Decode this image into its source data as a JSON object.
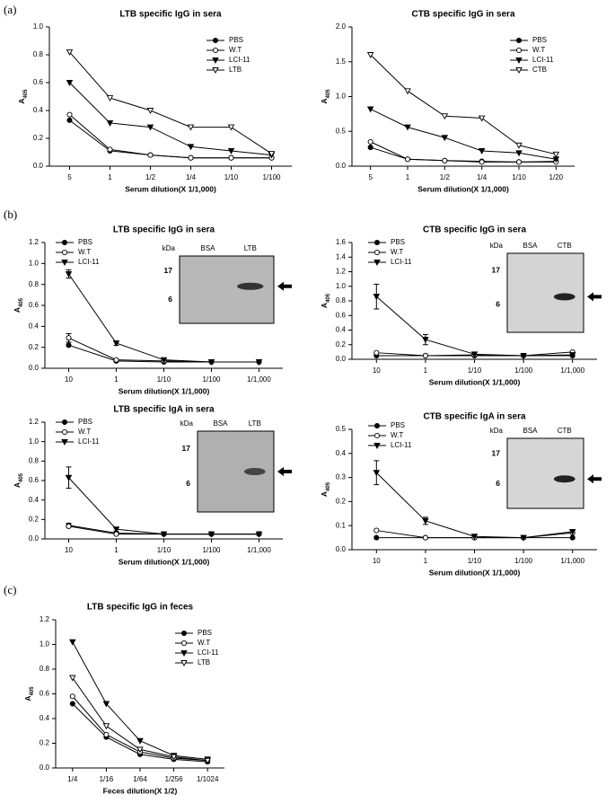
{
  "chart_data": [
    {
      "type": "line",
      "panel_label": "(a)",
      "title": "LTB specific IgG in sera",
      "xlabel": "Serum dilution(X 1/1,000)",
      "ylabel": "A",
      "ylabel_sub": "405",
      "categories": [
        "5",
        "1",
        "1/2",
        "1/4",
        "1/10",
        "1/100"
      ],
      "ylim": [
        0,
        1.0
      ],
      "yticks": [
        {
          "value": 0,
          "label": "0.0"
        },
        {
          "value": 0.2,
          "label": "0.2"
        },
        {
          "value": 0.4,
          "label": "0.4"
        },
        {
          "value": 0.6,
          "label": "0.6"
        },
        {
          "value": 0.8,
          "label": "0.8"
        },
        {
          "value": 1.0,
          "label": "1.0"
        }
      ],
      "series": [
        {
          "name": "PBS",
          "color": "#000000",
          "marker": "circle-filled",
          "values": [
            0.33,
            0.11,
            0.08,
            0.06,
            0.06,
            0.06
          ]
        },
        {
          "name": "W.T",
          "color": "#000000",
          "marker": "circle-open",
          "values": [
            0.37,
            0.12,
            0.08,
            0.06,
            0.06,
            0.06
          ]
        },
        {
          "name": "LCI-11",
          "color": "#000000",
          "marker": "triangle-filled",
          "values": [
            0.6,
            0.31,
            0.28,
            0.14,
            0.11,
            0.08
          ]
        },
        {
          "name": "LTB",
          "color": "#000000",
          "marker": "triangle-open",
          "values": [
            0.82,
            0.49,
            0.4,
            0.28,
            0.28,
            0.09
          ]
        }
      ]
    },
    {
      "type": "line",
      "title": "CTB specific IgG in sera",
      "xlabel": "Serum dilution(X 1/1,000)",
      "ylabel": "A",
      "ylabel_sub": "405",
      "categories": [
        "5",
        "1",
        "1/2",
        "1/4",
        "1/10",
        "1/20"
      ],
      "ylim": [
        0,
        2.0
      ],
      "yticks": [
        {
          "value": 0,
          "label": "0.0"
        },
        {
          "value": 0.5,
          "label": "0.5"
        },
        {
          "value": 1.0,
          "label": "1.0"
        },
        {
          "value": 1.5,
          "label": "1.5"
        },
        {
          "value": 2.0,
          "label": "2.0"
        }
      ],
      "series": [
        {
          "name": "PBS",
          "color": "#000000",
          "marker": "circle-filled",
          "values": [
            0.27,
            0.1,
            0.08,
            0.07,
            0.06,
            0.07
          ]
        },
        {
          "name": "W.T",
          "color": "#000000",
          "marker": "circle-open",
          "values": [
            0.35,
            0.1,
            0.08,
            0.06,
            0.06,
            0.06
          ]
        },
        {
          "name": "LCI-11",
          "color": "#000000",
          "marker": "triangle-filled",
          "values": [
            0.82,
            0.56,
            0.41,
            0.22,
            0.19,
            0.1
          ]
        },
        {
          "name": "CTB",
          "color": "#000000",
          "marker": "triangle-open",
          "values": [
            1.6,
            1.08,
            0.72,
            0.69,
            0.3,
            0.17
          ]
        }
      ]
    },
    {
      "type": "line",
      "panel_label": "(b)",
      "title": "LTB specific IgG in sera",
      "xlabel": "Serum dilution(X 1/1,000)",
      "ylabel": "A",
      "ylabel_sub": "405",
      "categories": [
        "10",
        "1",
        "1/10",
        "1/100",
        "1/1,000"
      ],
      "ylim": [
        0,
        1.2
      ],
      "yticks": [
        {
          "value": 0,
          "label": "0.0"
        },
        {
          "value": 0.2,
          "label": "0.2"
        },
        {
          "value": 0.4,
          "label": "0.4"
        },
        {
          "value": 0.6,
          "label": "0.6"
        },
        {
          "value": 0.8,
          "label": "0.8"
        },
        {
          "value": 1.0,
          "label": "1.0"
        },
        {
          "value": 1.2,
          "label": "1.2"
        }
      ],
      "series": [
        {
          "name": "PBS",
          "color": "#000000",
          "marker": "circle-filled",
          "values": [
            0.22,
            0.07,
            0.06,
            0.06,
            0.06
          ]
        },
        {
          "name": "W.T",
          "color": "#000000",
          "marker": "circle-open",
          "values": [
            0.29,
            0.08,
            0.07,
            0.06,
            0.06
          ],
          "errors": [
            0.04,
            null,
            null,
            null,
            null
          ]
        },
        {
          "name": "LCI-11",
          "color": "#000000",
          "marker": "triangle-filled",
          "values": [
            0.9,
            0.24,
            0.08,
            0.06,
            0.06
          ],
          "errors": [
            0.04,
            0.02,
            null,
            null,
            null
          ]
        }
      ],
      "inset": {
        "unit": "kDa",
        "lanes": [
          "BSA",
          "LTB"
        ],
        "markers": [
          "17",
          "6"
        ]
      }
    },
    {
      "type": "line",
      "title": "CTB specific IgG in sera",
      "xlabel": "Serum dilution(X 1/1,000)",
      "ylabel": "A",
      "ylabel_sub": "405",
      "categories": [
        "10",
        "1",
        "1/10",
        "1/100",
        "1/1,000"
      ],
      "ylim": [
        0,
        1.6
      ],
      "yticks": [
        {
          "value": 0,
          "label": "0.0"
        },
        {
          "value": 0.2,
          "label": "0.2"
        },
        {
          "value": 0.4,
          "label": "0.4"
        },
        {
          "value": 0.6,
          "label": "0.6"
        },
        {
          "value": 0.8,
          "label": "0.8"
        },
        {
          "value": 1.0,
          "label": "1.0"
        },
        {
          "value": 1.2,
          "label": "1.2"
        },
        {
          "value": 1.4,
          "label": "1.4"
        },
        {
          "value": 1.6,
          "label": "1.6"
        }
      ],
      "series": [
        {
          "name": "PBS",
          "color": "#000000",
          "marker": "circle-filled",
          "values": [
            0.05,
            0.05,
            0.05,
            0.05,
            0.05
          ]
        },
        {
          "name": "W.T",
          "color": "#000000",
          "marker": "circle-open",
          "values": [
            0.09,
            0.05,
            0.06,
            0.05,
            0.1
          ]
        },
        {
          "name": "LCI-11",
          "color": "#000000",
          "marker": "triangle-filled",
          "values": [
            0.86,
            0.27,
            0.07,
            0.05,
            0.06
          ],
          "errors": [
            0.17,
            0.07,
            null,
            null,
            null
          ]
        }
      ],
      "inset": {
        "unit": "kDa",
        "lanes": [
          "BSA",
          "CTB"
        ],
        "markers": [
          "17",
          "6"
        ]
      }
    },
    {
      "type": "line",
      "title": "LTB specific IgA in sera",
      "xlabel": "Serum dilution(X 1/1,000)",
      "ylabel": "A",
      "ylabel_sub": "405",
      "categories": [
        "10",
        "1",
        "1/10",
        "1/100",
        "1/1,000"
      ],
      "ylim": [
        0,
        1.2
      ],
      "yticks": [
        {
          "value": 0,
          "label": "0.0"
        },
        {
          "value": 0.2,
          "label": "0.2"
        },
        {
          "value": 0.4,
          "label": "0.4"
        },
        {
          "value": 0.6,
          "label": "0.6"
        },
        {
          "value": 0.8,
          "label": "0.8"
        },
        {
          "value": 1.0,
          "label": "1.0"
        },
        {
          "value": 1.2,
          "label": "1.2"
        }
      ],
      "series": [
        {
          "name": "PBS",
          "color": "#000000",
          "marker": "circle-filled",
          "values": [
            0.14,
            0.06,
            0.05,
            0.05,
            0.05
          ],
          "errors": [
            0.02,
            null,
            null,
            null,
            null
          ]
        },
        {
          "name": "W.T",
          "color": "#000000",
          "marker": "circle-open",
          "values": [
            0.13,
            0.05,
            0.05,
            0.05,
            0.05
          ]
        },
        {
          "name": "LCI-11",
          "color": "#000000",
          "marker": "triangle-filled",
          "values": [
            0.63,
            0.1,
            0.05,
            0.05,
            0.05
          ],
          "errors": [
            0.11,
            0.02,
            null,
            null,
            null
          ]
        }
      ],
      "inset": {
        "unit": "kDa",
        "lanes": [
          "BSA",
          "LTB"
        ],
        "markers": [
          "17",
          "6"
        ]
      }
    },
    {
      "type": "line",
      "title": "CTB specific IgA in sera",
      "xlabel": "Serum dilution(X 1/1,000)",
      "ylabel": "A",
      "ylabel_sub": "405",
      "categories": [
        "10",
        "1",
        "1/10",
        "1/100",
        "1/1,000"
      ],
      "ylim": [
        0,
        0.5
      ],
      "yticks": [
        {
          "value": 0,
          "label": "0.0"
        },
        {
          "value": 0.1,
          "label": "0.1"
        },
        {
          "value": 0.2,
          "label": "0.2"
        },
        {
          "value": 0.3,
          "label": "0.3"
        },
        {
          "value": 0.4,
          "label": "0.4"
        },
        {
          "value": 0.5,
          "label": "0.5"
        }
      ],
      "series": [
        {
          "name": "PBS",
          "color": "#000000",
          "marker": "circle-filled",
          "values": [
            0.05,
            0.05,
            0.05,
            0.05,
            0.05
          ]
        },
        {
          "name": "W.T",
          "color": "#000000",
          "marker": "circle-open",
          "values": [
            0.08,
            0.05,
            0.05,
            0.05,
            0.07
          ]
        },
        {
          "name": "LCI-11",
          "color": "#000000",
          "marker": "triangle-filled",
          "values": [
            0.32,
            0.12,
            0.055,
            0.05,
            0.075
          ],
          "errors": [
            0.05,
            0.015,
            null,
            null,
            null
          ]
        }
      ],
      "inset": {
        "unit": "kDa",
        "lanes": [
          "BSA",
          "CTB"
        ],
        "markers": [
          "17",
          "6"
        ]
      }
    },
    {
      "type": "line",
      "panel_label": "(c)",
      "title": "LTB specific IgG in feces",
      "xlabel": "Feces dilution(X 1/2)",
      "ylabel": "A",
      "ylabel_sub": "405",
      "categories": [
        "1/4",
        "1/16",
        "1/64",
        "1/256",
        "1/1024"
      ],
      "ylim": [
        0,
        1.2
      ],
      "yticks": [
        {
          "value": 0,
          "label": "0.0"
        },
        {
          "value": 0.2,
          "label": "0.2"
        },
        {
          "value": 0.4,
          "label": "0.4"
        },
        {
          "value": 0.6,
          "label": "0.6"
        },
        {
          "value": 0.8,
          "label": "0.8"
        },
        {
          "value": 1.0,
          "label": "1.0"
        },
        {
          "value": 1.2,
          "label": "1.2"
        }
      ],
      "series": [
        {
          "name": "PBS",
          "color": "#000000",
          "marker": "circle-filled",
          "values": [
            0.52,
            0.25,
            0.11,
            0.07,
            0.05
          ]
        },
        {
          "name": "W.T",
          "color": "#000000",
          "marker": "circle-open",
          "values": [
            0.58,
            0.27,
            0.13,
            0.08,
            0.06
          ]
        },
        {
          "name": "LCI-11",
          "color": "#000000",
          "marker": "triangle-filled",
          "values": [
            1.02,
            0.52,
            0.22,
            0.1,
            0.07
          ]
        },
        {
          "name": "LTB",
          "color": "#000000",
          "marker": "triangle-open",
          "values": [
            0.73,
            0.34,
            0.15,
            0.09,
            0.06
          ]
        }
      ]
    }
  ]
}
